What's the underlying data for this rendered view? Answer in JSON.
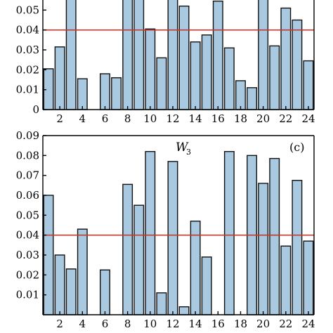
{
  "chart_data": [
    {
      "type": "bar",
      "panel": "top",
      "x": [
        1,
        2,
        3,
        4,
        5,
        6,
        7,
        8,
        9,
        10,
        11,
        12,
        13,
        14,
        15,
        16,
        17,
        18,
        19,
        20,
        21,
        22,
        23,
        24
      ],
      "values": [
        0.0205,
        0.0315,
        0.06,
        0.0155,
        0.0,
        0.018,
        0.016,
        0.06,
        0.06,
        0.0405,
        0.026,
        0.06,
        0.052,
        0.034,
        0.0375,
        0.0545,
        0.031,
        0.0145,
        0.011,
        0.06,
        0.032,
        0.051,
        0.045,
        0.0245
      ],
      "ylim": [
        0,
        0.06
      ],
      "yticks": [
        "0",
        "0.01",
        "0.02",
        "0.03",
        "0.04",
        "0.05"
      ],
      "xticks": [
        "2",
        "4",
        "6",
        "8",
        "10",
        "12",
        "14",
        "16",
        "18",
        "20",
        "22",
        "24"
      ],
      "threshold": 0.04,
      "colors": {
        "bar": "#a9c9e0",
        "threshold": "#c0392b"
      }
    },
    {
      "type": "bar",
      "panel": "bottom",
      "title_main": "W",
      "title_sub": "3",
      "tag": "(c)",
      "x": [
        1,
        2,
        3,
        4,
        5,
        6,
        7,
        8,
        9,
        10,
        11,
        12,
        13,
        14,
        15,
        16,
        17,
        18,
        19,
        20,
        21,
        22,
        23,
        24
      ],
      "values": [
        0.06,
        0.03,
        0.023,
        0.043,
        0.0,
        0.0225,
        0.0,
        0.0655,
        0.055,
        0.082,
        0.011,
        0.077,
        0.004,
        0.047,
        0.029,
        0.0,
        0.082,
        0.0,
        0.08,
        0.066,
        0.0785,
        0.0345,
        0.0675,
        0.037
      ],
      "ylim": [
        0,
        0.09
      ],
      "yticks": [
        "0.01",
        "0.02",
        "0.03",
        "0.04",
        "0.05",
        "0.06",
        "0.07",
        "0.08",
        "0.09"
      ],
      "xticks": [
        "2",
        "4",
        "6",
        "8",
        "10",
        "12",
        "14",
        "16",
        "18",
        "20",
        "22",
        "24"
      ],
      "threshold": 0.04,
      "colors": {
        "bar": "#a9c9e0",
        "threshold": "#c0392b"
      }
    }
  ]
}
